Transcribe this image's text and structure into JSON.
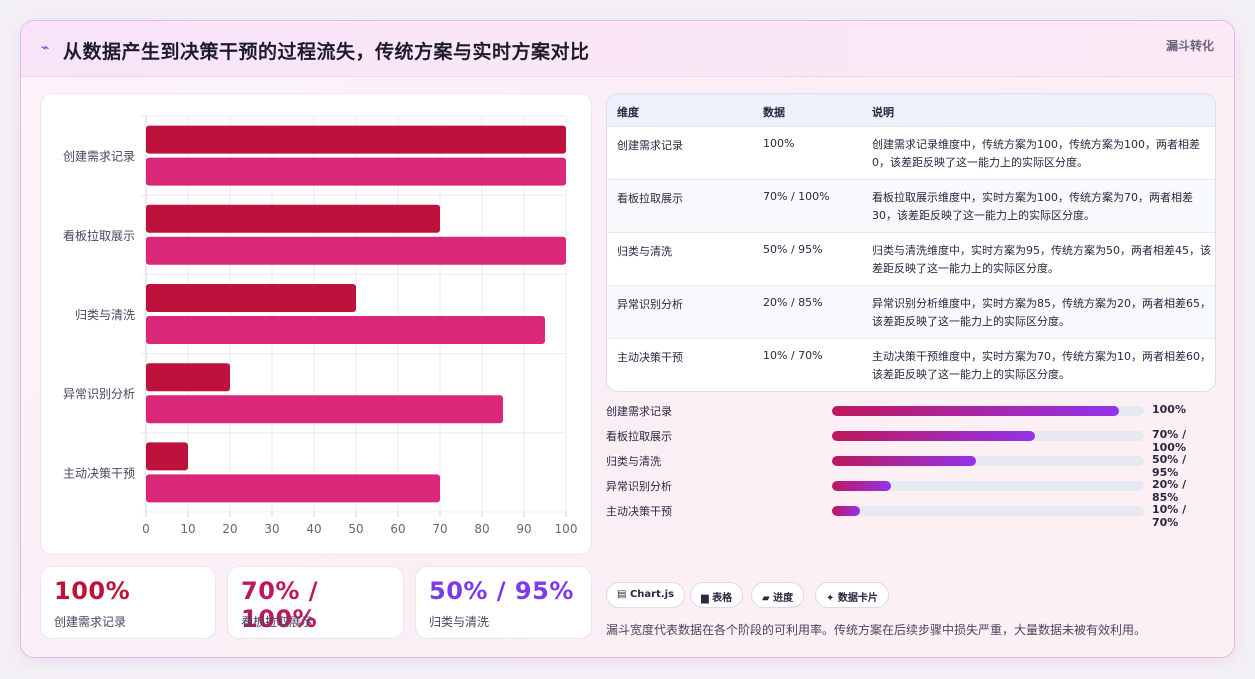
{
  "header": {
    "icon": "spark-icon",
    "title": "从数据产生到决策干预的过程流失，传统方案与实时方案对比",
    "tag": "漏斗转化"
  },
  "chart_data": {
    "type": "bar",
    "orientation": "horizontal",
    "categories": [
      "创建需求记录",
      "看板拉取展示",
      "归类与清洗",
      "异常识别分析",
      "主动决策干预"
    ],
    "series": [
      {
        "values": [
          100,
          70,
          50,
          20,
          10
        ],
        "color": "#be123c"
      },
      {
        "values": [
          100,
          100,
          95,
          85,
          70
        ],
        "color": "#db2777"
      }
    ],
    "xlim": [
      0,
      100
    ],
    "xticks": [
      "0",
      "10",
      "20",
      "30",
      "40",
      "50",
      "60",
      "70",
      "80",
      "90",
      "100"
    ],
    "grid": true,
    "legend": "none"
  },
  "stats": [
    {
      "value": "100%",
      "label": "创建需求记录",
      "color": "#be123c"
    },
    {
      "value": "70% / 100%",
      "label": "看板拉取展示",
      "color": "#be185d"
    },
    {
      "value": "50% / 95%",
      "label": "归类与清洗",
      "color": "#7c3aed"
    }
  ],
  "table": {
    "headers": [
      "维度",
      "数据",
      "说明"
    ],
    "rows": [
      {
        "dim": "创建需求记录",
        "data": "100%",
        "desc": "创建需求记录维度中，传统方案为100，传统方案为100，两者相差0，该差距反映了这一能力上的实际区分度。"
      },
      {
        "dim": "看板拉取展示",
        "data": "70% / 100%",
        "desc": "看板拉取展示维度中，实时方案为100，传统方案为70，两者相差30，该差距反映了这一能力上的实际区分度。"
      },
      {
        "dim": "归类与清洗",
        "data": "50% / 95%",
        "desc": "归类与清洗维度中，实时方案为95，传统方案为50，两者相差45，该差距反映了这一能力上的实际区分度。"
      },
      {
        "dim": "异常识别分析",
        "data": "20% / 85%",
        "desc": "异常识别分析维度中，实时方案为85，传统方案为20，两者相差65，该差距反映了这一能力上的实际区分度。"
      },
      {
        "dim": "主动决策干预",
        "data": "10% / 70%",
        "desc": "主动决策干预维度中，实时方案为70，传统方案为10，两者相差60，该差距反映了这一能力上的实际区分度。"
      }
    ]
  },
  "progress": [
    {
      "label": "创建需求记录",
      "value": "100%",
      "fraction": 0.92
    },
    {
      "label": "看板拉取展示",
      "value": "70% / 100%",
      "fraction": 0.65
    },
    {
      "label": "归类与清洗",
      "value": "50% / 95%",
      "fraction": 0.46
    },
    {
      "label": "异常识别分析",
      "value": "20% / 85%",
      "fraction": 0.19
    },
    {
      "label": "主动决策干预",
      "value": "10% / 70%",
      "fraction": 0.09
    }
  ],
  "chips": [
    {
      "icon": "chart-icon",
      "glyph": "▤",
      "label": "Chart.js"
    },
    {
      "icon": "table-icon",
      "glyph": "▆",
      "label": "表格"
    },
    {
      "icon": "progress-icon",
      "glyph": "▰",
      "label": "进度"
    },
    {
      "icon": "card-icon",
      "glyph": "✦",
      "label": "数据卡片"
    }
  ],
  "note": "漏斗宽度代表数据在各个阶段的可利用率。传统方案在后续步骤中损失严重，大量数据未被有效利用。"
}
